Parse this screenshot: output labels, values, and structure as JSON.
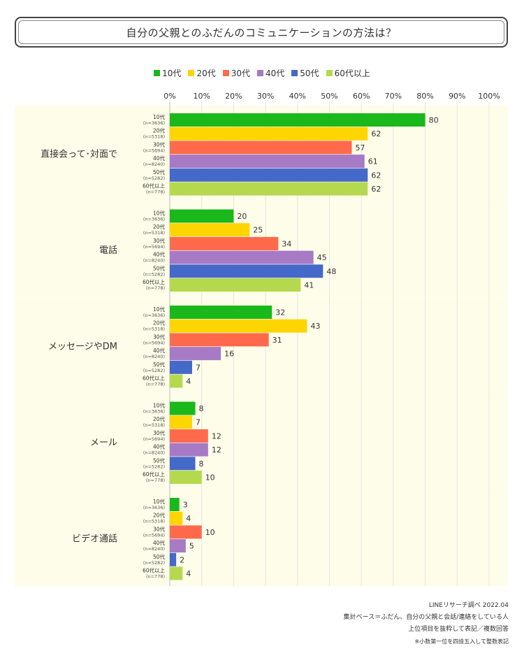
{
  "title": "自分の父親とのふだんのコミュニケーションの方法は？",
  "colors": {
    "10代": "#1ab81a",
    "20代": "#ffd500",
    "30代": "#ff6a4d",
    "40代": "#a77ac6",
    "50代": "#4569c9",
    "60代以上": "#b5d94e",
    "band": "#fdfde9",
    "grid": "#e6e6e6"
  },
  "footer": {
    "source": "LINEリサーチ調べ 2022.04",
    "base": "集計ベース＝ふだん、自分の父親と会話/連絡をしている人",
    "method": "上位項目を抜粋して表記／複数回答",
    "note": "※小数第一位を四捨五入して整数表記"
  },
  "chart_data": {
    "type": "bar",
    "orientation": "horizontal",
    "title": "自分の父親とのふだんのコミュニケーションの方法は？",
    "legend_position": "top",
    "xlim": [
      0,
      100
    ],
    "x_ticks": [
      "0%",
      "10%",
      "20%",
      "30%",
      "40%",
      "50%",
      "60%",
      "70%",
      "80%",
      "90%",
      "100%"
    ],
    "grid": true,
    "categories": [
      "直接会って･対面で",
      "電話",
      "メッセージやDM",
      "メール",
      "ビデオ通話"
    ],
    "series": [
      {
        "name": "10代",
        "sample": "(n=3636)",
        "values": [
          80,
          20,
          32,
          8,
          3
        ]
      },
      {
        "name": "20代",
        "sample": "(n=5318)",
        "values": [
          62,
          25,
          43,
          7,
          4
        ]
      },
      {
        "name": "30代",
        "sample": "(n=5694)",
        "values": [
          57,
          34,
          31,
          12,
          10
        ]
      },
      {
        "name": "40代",
        "sample": "(n=8240)",
        "values": [
          61,
          45,
          16,
          12,
          5
        ]
      },
      {
        "name": "50代",
        "sample": "(n=5282)",
        "values": [
          62,
          48,
          7,
          8,
          2
        ]
      },
      {
        "name": "60代以上",
        "sample": "(n=778)",
        "values": [
          62,
          41,
          4,
          10,
          4
        ]
      }
    ]
  }
}
